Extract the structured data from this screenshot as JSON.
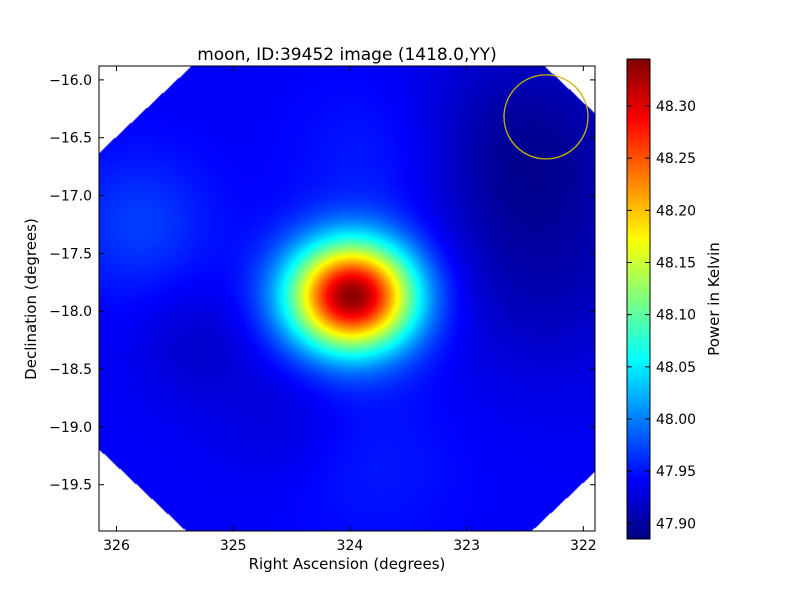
{
  "chart_data": {
    "type": "heatmap",
    "title": "moon, ID:39452 image (1418.0,YY)",
    "xlabel": "Right Ascension (degrees)",
    "ylabel": "Declination (degrees)",
    "xlim": [
      326.15,
      321.9
    ],
    "ylim": [
      -19.9,
      -15.88
    ],
    "x_ticks": [
      326,
      325,
      324,
      323,
      322
    ],
    "x_tick_labels": [
      "326",
      "325",
      "324",
      "323",
      "322"
    ],
    "y_ticks": [
      -16.0,
      -16.5,
      -17.0,
      -17.5,
      -18.0,
      -18.5,
      -19.0,
      -19.5
    ],
    "y_tick_labels": [
      "−16.0",
      "−16.5",
      "−17.0",
      "−17.5",
      "−18.0",
      "−18.5",
      "−19.0",
      "−19.5"
    ],
    "colormap": "jet",
    "colorbar": {
      "label": "Power in Kelvin",
      "min": 47.885,
      "max": 48.345,
      "ticks": [
        47.9,
        47.95,
        48.0,
        48.05,
        48.1,
        48.15,
        48.2,
        48.25,
        48.3
      ],
      "tick_labels": [
        "47.90",
        "47.95",
        "48.00",
        "48.05",
        "48.10",
        "48.15",
        "48.20",
        "48.25",
        "48.30"
      ]
    },
    "background_level": 47.94,
    "peak": {
      "ra": 323.98,
      "dec": -17.87,
      "value": 48.34
    },
    "annotations": [
      {
        "type": "circle",
        "ra": 322.32,
        "dec": -16.32,
        "radius_deg": 0.36,
        "color": "#c8b400"
      }
    ]
  }
}
